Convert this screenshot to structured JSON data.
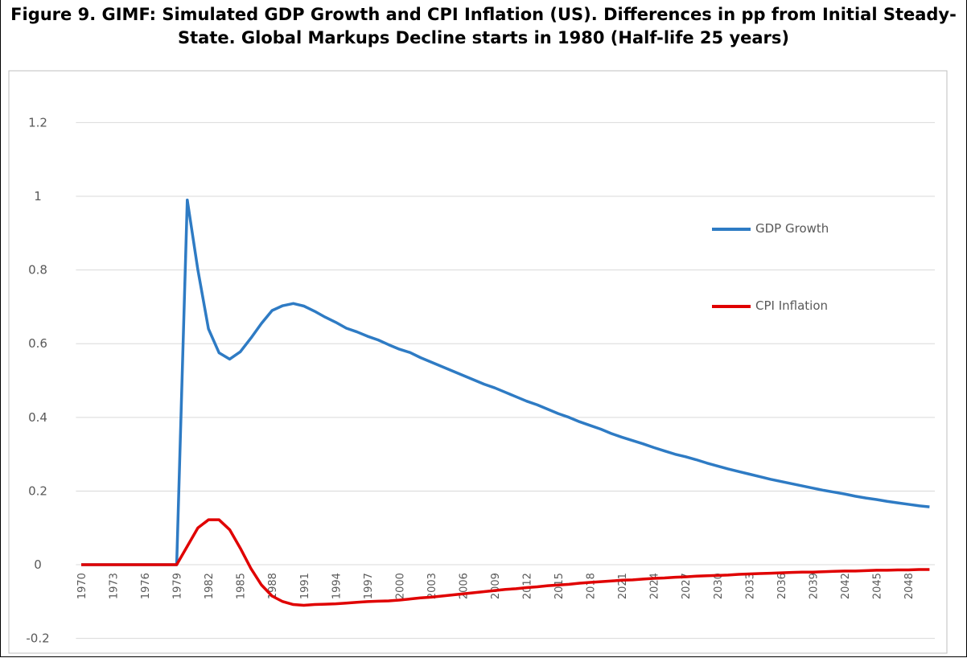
{
  "chart_data": {
    "type": "line",
    "title": "Figure 9. GIMF: Simulated GDP Growth and CPI Inflation (US). Differences in pp from Initial Steady-State. Global Markups Decline starts in 1980 (Half-life 25 years)",
    "x": [
      1970,
      1971,
      1972,
      1973,
      1974,
      1975,
      1976,
      1977,
      1978,
      1979,
      1980,
      1981,
      1982,
      1983,
      1984,
      1985,
      1986,
      1987,
      1988,
      1989,
      1990,
      1991,
      1992,
      1993,
      1994,
      1995,
      1996,
      1997,
      1998,
      1999,
      2000,
      2001,
      2002,
      2003,
      2004,
      2005,
      2006,
      2007,
      2008,
      2009,
      2010,
      2011,
      2012,
      2013,
      2014,
      2015,
      2016,
      2017,
      2018,
      2019,
      2020,
      2021,
      2022,
      2023,
      2024,
      2025,
      2026,
      2027,
      2028,
      2029,
      2030,
      2031,
      2032,
      2033,
      2034,
      2035,
      2036,
      2037,
      2038,
      2039,
      2040,
      2041,
      2042,
      2043,
      2044,
      2045,
      2046,
      2047,
      2048,
      2049,
      2050
    ],
    "series": [
      {
        "name": "GDP Growth",
        "color": "#2e7bc4",
        "values": [
          0,
          0,
          0,
          0,
          0,
          0,
          0,
          0,
          0,
          0,
          0.99,
          0.8,
          0.64,
          0.575,
          0.558,
          0.578,
          0.615,
          0.655,
          0.69,
          0.703,
          0.709,
          0.702,
          0.688,
          0.672,
          0.658,
          0.642,
          0.632,
          0.62,
          0.61,
          0.597,
          0.585,
          0.576,
          0.562,
          0.55,
          0.538,
          0.526,
          0.514,
          0.502,
          0.49,
          0.48,
          0.468,
          0.456,
          0.444,
          0.434,
          0.422,
          0.41,
          0.4,
          0.388,
          0.378,
          0.368,
          0.356,
          0.346,
          0.337,
          0.328,
          0.318,
          0.309,
          0.3,
          0.293,
          0.285,
          0.276,
          0.268,
          0.26,
          0.253,
          0.246,
          0.239,
          0.232,
          0.226,
          0.22,
          0.214,
          0.208,
          0.202,
          0.197,
          0.192,
          0.186,
          0.181,
          0.177,
          0.172,
          0.168,
          0.164,
          0.16,
          0.157
        ]
      },
      {
        "name": "CPI Inflation",
        "color": "#e00000",
        "values": [
          0,
          0,
          0,
          0,
          0,
          0,
          0,
          0,
          0,
          0,
          0.05,
          0.1,
          0.122,
          0.122,
          0.095,
          0.045,
          -0.01,
          -0.055,
          -0.085,
          -0.1,
          -0.108,
          -0.11,
          -0.108,
          -0.107,
          -0.106,
          -0.104,
          -0.102,
          -0.1,
          -0.099,
          -0.098,
          -0.096,
          -0.093,
          -0.09,
          -0.088,
          -0.085,
          -0.082,
          -0.079,
          -0.076,
          -0.073,
          -0.07,
          -0.067,
          -0.065,
          -0.062,
          -0.06,
          -0.057,
          -0.055,
          -0.053,
          -0.05,
          -0.048,
          -0.046,
          -0.044,
          -0.042,
          -0.041,
          -0.039,
          -0.037,
          -0.036,
          -0.034,
          -0.033,
          -0.031,
          -0.03,
          -0.029,
          -0.028,
          -0.026,
          -0.025,
          -0.024,
          -0.023,
          -0.022,
          -0.021,
          -0.02,
          -0.02,
          -0.019,
          -0.018,
          -0.017,
          -0.017,
          -0.016,
          -0.015,
          -0.015,
          -0.014,
          -0.014,
          -0.013,
          -0.013
        ]
      }
    ],
    "xlim": [
      1969.5,
      2050.5
    ],
    "xticks": [
      1970,
      1973,
      1976,
      1979,
      1982,
      1985,
      1988,
      1991,
      1994,
      1997,
      2000,
      2003,
      2006,
      2009,
      2012,
      2015,
      2018,
      2021,
      2024,
      2027,
      2030,
      2033,
      2036,
      2039,
      2042,
      2045,
      2048
    ],
    "ylim": [
      -0.24,
      1.32
    ],
    "yticks": [
      -0.2,
      0,
      0.2,
      0.4,
      0.6,
      0.8,
      1,
      1.2
    ],
    "grid": true
  }
}
